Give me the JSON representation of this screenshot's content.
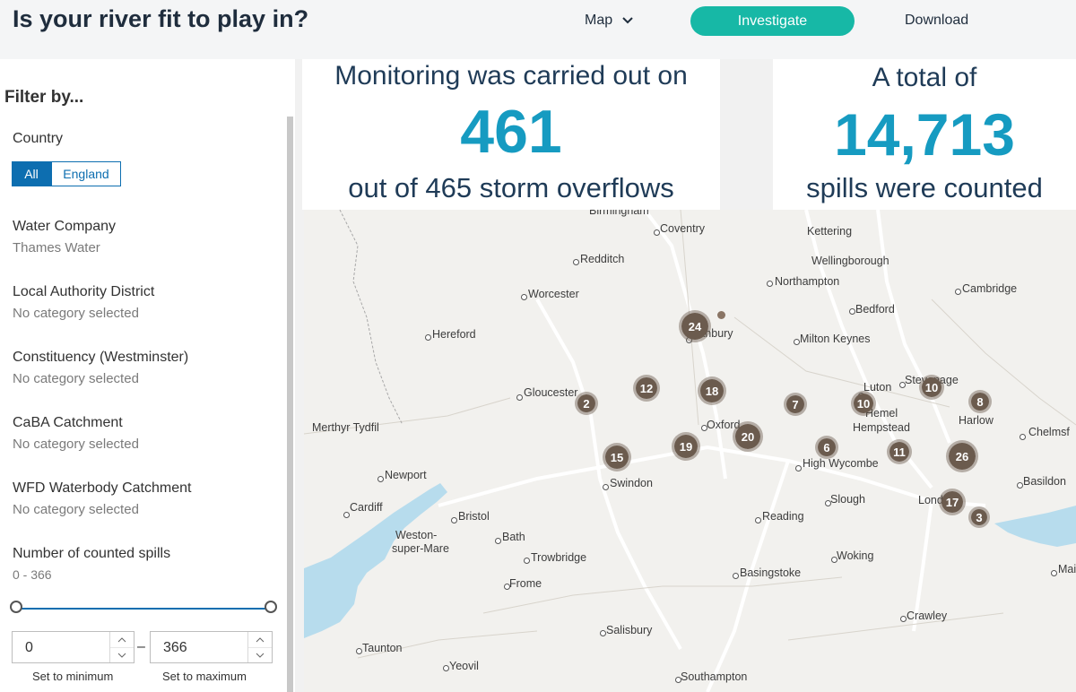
{
  "header": {
    "title": "Is your river fit to play in?",
    "nav": {
      "map": "Map",
      "investigate": "Investigate",
      "download": "Download"
    }
  },
  "sidebar": {
    "title": "Filter by...",
    "country": {
      "label": "Country",
      "options": [
        "All",
        "England"
      ],
      "selected": "All"
    },
    "water_company": {
      "label": "Water Company",
      "value": "Thames Water"
    },
    "local_authority": {
      "label": "Local Authority District",
      "value": "No category selected"
    },
    "constituency": {
      "label": "Constituency (Westminster)",
      "value": "No category selected"
    },
    "caba": {
      "label": "CaBA Catchment",
      "value": "No category selected"
    },
    "wfd": {
      "label": "WFD Waterbody Catchment",
      "value": "No category selected"
    },
    "spills": {
      "label": "Number of counted spills",
      "range_text": "0 - 366",
      "min": "0",
      "max": "366",
      "dash": "–",
      "set_min": "Set to minimum",
      "set_max": "Set to maximum"
    }
  },
  "stats": {
    "left": {
      "line1": "Monitoring was carried out on",
      "number": "461",
      "line2": "out of 465 storm overflows"
    },
    "right": {
      "line1": "A total of",
      "number": "14,713",
      "line2": "spills were counted"
    }
  },
  "map": {
    "colors": {
      "land": "#f2f1ee",
      "water": "#b7dced",
      "cluster": "#6b5b4e"
    },
    "places": [
      "Birmingham",
      "Coventry",
      "Kettering",
      "Redditch",
      "Wellingborough",
      "Worcester",
      "Northampton",
      "Cambridge",
      "Bedford",
      "Hereford",
      "Banbury",
      "Milton Keynes",
      "Gloucester",
      "Luton",
      "Stevenage",
      "Merthyr Tydfil",
      "Hemel",
      "Hempstead",
      "Harlow",
      "Oxford",
      "Chelmsf",
      "High Wycombe",
      "Newport",
      "Swindon",
      "Basildon",
      "Slough",
      "London",
      "Cardiff",
      "Bristol",
      "Reading",
      "Weston-",
      "super-Mare",
      "Bath",
      "Trowbridge",
      "Woking",
      "Maidst",
      "Basingstoke",
      "Frome",
      "Crawley",
      "Salisbury",
      "Taunton",
      "Yeovil",
      "Southampton"
    ],
    "clusters": [
      "24",
      "12",
      "18",
      "2",
      "7",
      "10",
      "10",
      "8",
      "20",
      "19",
      "15",
      "6",
      "11",
      "26",
      "17",
      "3"
    ]
  }
}
